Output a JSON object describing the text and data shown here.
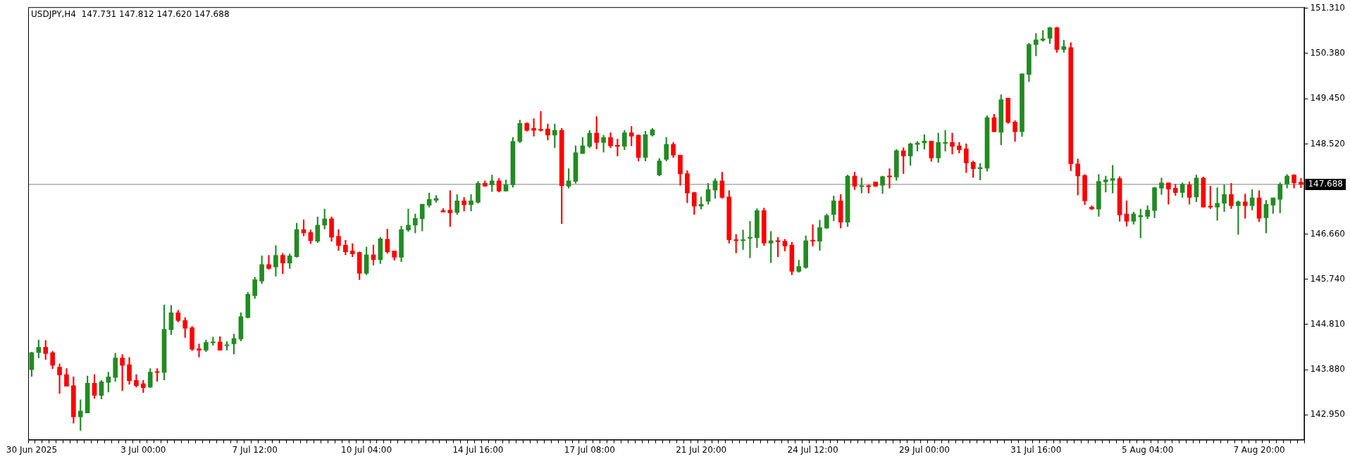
{
  "chart_data": {
    "type": "candlestick",
    "title": "USDJPY,H4  147.731 147.812 147.620 147.688",
    "categories": [
      "30 Jun 2025",
      null,
      null,
      null,
      null,
      null,
      null,
      null,
      null,
      null,
      null,
      null,
      null,
      null,
      null,
      null,
      "3 Jul 00:00",
      null,
      null,
      null,
      null,
      null,
      null,
      null,
      null,
      null,
      null,
      null,
      null,
      null,
      null,
      null,
      "7 Jul 12:00",
      null,
      null,
      null,
      null,
      null,
      null,
      null,
      null,
      null,
      null,
      null,
      null,
      null,
      null,
      null,
      "10 Jul 04:00",
      null,
      null,
      null,
      null,
      null,
      null,
      null,
      null,
      null,
      null,
      null,
      null,
      null,
      null,
      null,
      "14 Jul 16:00",
      null,
      null,
      null,
      null,
      null,
      null,
      null,
      null,
      null,
      null,
      null,
      null,
      null,
      null,
      null,
      "17 Jul 08:00",
      null,
      null,
      null,
      null,
      null,
      null,
      null,
      null,
      null,
      null,
      null,
      null,
      null,
      null,
      null,
      "21 Jul 20:00",
      null,
      null,
      null,
      null,
      null,
      null,
      null,
      null,
      null,
      null,
      null,
      null,
      null,
      null,
      null,
      "24 Jul 12:00",
      null,
      null,
      null,
      null,
      null,
      null,
      null,
      null,
      null,
      null,
      null,
      null,
      null,
      null,
      null,
      "29 Jul 00:00",
      null,
      null,
      null,
      null,
      null,
      null,
      null,
      null,
      null,
      null,
      null,
      null,
      null,
      null,
      null,
      "31 Jul 16:00",
      null,
      null,
      null,
      null,
      null,
      null,
      null,
      null,
      null,
      null,
      null,
      null,
      null,
      null,
      null,
      "5 Aug 04:00",
      null,
      null,
      null,
      null,
      null,
      null,
      null,
      null,
      null,
      null,
      null,
      null,
      null,
      null,
      null,
      "7 Aug 20:00",
      null,
      null,
      null,
      null,
      null,
      null
    ],
    "ohlc": [
      [
        143.88,
        144.24,
        143.74,
        144.23
      ],
      [
        144.23,
        144.49,
        144.12,
        144.34
      ],
      [
        144.34,
        144.48,
        144.09,
        144.21
      ],
      [
        144.23,
        144.26,
        143.9,
        143.97
      ],
      [
        143.93,
        144.0,
        143.39,
        143.77
      ],
      [
        143.78,
        143.9,
        143.54,
        143.54
      ],
      [
        143.55,
        143.73,
        142.78,
        142.91
      ],
      [
        142.91,
        143.26,
        142.63,
        143.03
      ],
      [
        142.99,
        143.75,
        142.99,
        143.6
      ],
      [
        143.6,
        143.78,
        143.29,
        143.35
      ],
      [
        143.35,
        143.66,
        143.28,
        143.63
      ],
      [
        143.62,
        143.83,
        143.42,
        143.73
      ],
      [
        143.72,
        144.22,
        143.64,
        144.12
      ],
      [
        144.12,
        144.19,
        143.45,
        143.97
      ],
      [
        143.98,
        144.13,
        143.58,
        143.65
      ],
      [
        143.66,
        143.78,
        143.52,
        143.55
      ],
      [
        143.59,
        143.66,
        143.41,
        143.51
      ],
      [
        143.52,
        143.9,
        143.51,
        143.83
      ],
      [
        143.83,
        143.9,
        143.64,
        143.82
      ],
      [
        143.82,
        145.21,
        143.67,
        144.71
      ],
      [
        144.7,
        145.2,
        144.6,
        145.05
      ],
      [
        145.05,
        145.1,
        144.86,
        144.89
      ],
      [
        144.89,
        144.95,
        144.54,
        144.73
      ],
      [
        144.74,
        144.77,
        144.27,
        144.3
      ],
      [
        144.31,
        144.41,
        144.14,
        144.28
      ],
      [
        144.28,
        144.49,
        144.25,
        144.44
      ],
      [
        144.43,
        144.55,
        144.38,
        144.45
      ],
      [
        144.45,
        144.56,
        144.28,
        144.28
      ],
      [
        144.37,
        144.46,
        144.28,
        144.39
      ],
      [
        144.41,
        144.61,
        144.2,
        144.52
      ],
      [
        144.51,
        145.05,
        144.47,
        144.97
      ],
      [
        144.95,
        145.47,
        144.94,
        145.43
      ],
      [
        145.4,
        145.78,
        145.34,
        145.73
      ],
      [
        145.7,
        146.22,
        145.65,
        146.04
      ],
      [
        146.04,
        146.23,
        145.94,
        145.96
      ],
      [
        145.99,
        146.43,
        145.8,
        146.23
      ],
      [
        146.23,
        146.27,
        145.85,
        146.07
      ],
      [
        146.07,
        146.26,
        145.96,
        146.22
      ],
      [
        146.2,
        146.89,
        146.19,
        146.76
      ],
      [
        146.76,
        146.96,
        146.63,
        146.69
      ],
      [
        146.7,
        146.75,
        146.47,
        146.53
      ],
      [
        146.52,
        147.02,
        146.49,
        146.85
      ],
      [
        146.85,
        147.18,
        146.77,
        146.98
      ],
      [
        146.98,
        147.02,
        146.52,
        146.6
      ],
      [
        146.62,
        146.76,
        146.33,
        146.43
      ],
      [
        146.44,
        146.54,
        146.24,
        146.3
      ],
      [
        146.32,
        146.47,
        146.2,
        146.26
      ],
      [
        146.29,
        146.3,
        145.73,
        145.86
      ],
      [
        145.86,
        146.4,
        145.83,
        146.24
      ],
      [
        146.24,
        146.44,
        146.03,
        146.14
      ],
      [
        146.14,
        146.6,
        146.06,
        146.57
      ],
      [
        146.56,
        146.77,
        146.27,
        146.3
      ],
      [
        146.32,
        146.32,
        146.13,
        146.19
      ],
      [
        146.19,
        146.83,
        146.1,
        146.76
      ],
      [
        146.75,
        147.18,
        146.72,
        146.85
      ],
      [
        146.85,
        147.08,
        146.69,
        146.99
      ],
      [
        146.98,
        147.28,
        146.73,
        147.28
      ],
      [
        147.26,
        147.51,
        147.22,
        147.38
      ],
      [
        147.36,
        147.46,
        147.32,
        147.4
      ],
      [
        147.15,
        147.19,
        147.12,
        147.12
      ],
      [
        147.16,
        147.56,
        146.82,
        147.1
      ],
      [
        147.11,
        147.48,
        147.07,
        147.35
      ],
      [
        147.35,
        147.42,
        147.14,
        147.27
      ],
      [
        147.27,
        147.48,
        147.14,
        147.35
      ],
      [
        147.32,
        147.75,
        147.3,
        147.71
      ],
      [
        147.71,
        147.76,
        147.65,
        147.65
      ],
      [
        147.68,
        147.88,
        147.54,
        147.76
      ],
      [
        147.76,
        147.81,
        147.53,
        147.55
      ],
      [
        147.55,
        147.78,
        147.55,
        147.68
      ],
      [
        147.68,
        148.65,
        147.63,
        148.57
      ],
      [
        148.57,
        149.01,
        148.54,
        148.94
      ],
      [
        148.94,
        148.96,
        148.78,
        148.8
      ],
      [
        148.84,
        149.04,
        148.68,
        148.8
      ],
      [
        148.81,
        149.19,
        148.78,
        148.8
      ],
      [
        148.83,
        148.93,
        148.6,
        148.7
      ],
      [
        148.7,
        148.93,
        148.44,
        148.8
      ],
      [
        148.8,
        148.84,
        146.88,
        147.66
      ],
      [
        147.65,
        148.01,
        147.61,
        147.76
      ],
      [
        147.75,
        148.48,
        147.71,
        148.34
      ],
      [
        148.32,
        148.65,
        148.32,
        148.48
      ],
      [
        148.47,
        148.8,
        148.44,
        148.74
      ],
      [
        148.74,
        149.08,
        148.42,
        148.55
      ],
      [
        148.55,
        148.7,
        148.35,
        148.65
      ],
      [
        148.65,
        148.75,
        148.44,
        148.48
      ],
      [
        148.48,
        148.62,
        148.27,
        148.47
      ],
      [
        148.47,
        148.8,
        148.4,
        148.75
      ],
      [
        148.75,
        148.88,
        148.48,
        148.68
      ],
      [
        148.7,
        148.71,
        148.17,
        148.24
      ],
      [
        148.24,
        148.78,
        148.17,
        148.71
      ],
      [
        148.7,
        148.84,
        148.68,
        148.81
      ],
      [
        147.88,
        148.22,
        147.86,
        148.17
      ],
      [
        148.2,
        148.65,
        148.17,
        148.51
      ],
      [
        148.51,
        148.55,
        148.24,
        148.29
      ],
      [
        148.29,
        148.29,
        147.67,
        147.9
      ],
      [
        147.91,
        147.97,
        147.31,
        147.51
      ],
      [
        147.52,
        147.53,
        147.07,
        147.24
      ],
      [
        147.24,
        147.43,
        147.18,
        147.28
      ],
      [
        147.34,
        147.71,
        147.28,
        147.58
      ],
      [
        147.57,
        147.81,
        147.4,
        147.76
      ],
      [
        147.76,
        147.94,
        147.4,
        147.42
      ],
      [
        147.43,
        147.56,
        146.48,
        146.55
      ],
      [
        146.55,
        146.66,
        146.28,
        146.53
      ],
      [
        146.53,
        146.75,
        146.35,
        146.54
      ],
      [
        146.58,
        146.93,
        146.18,
        146.59
      ],
      [
        146.59,
        147.19,
        146.39,
        147.15
      ],
      [
        147.15,
        147.2,
        146.43,
        146.48
      ],
      [
        146.48,
        146.72,
        146.08,
        146.53
      ],
      [
        146.53,
        146.6,
        146.2,
        146.51
      ],
      [
        146.52,
        146.56,
        146.32,
        146.42
      ],
      [
        146.44,
        146.5,
        145.83,
        145.9
      ],
      [
        145.9,
        146.13,
        145.88,
        146.0
      ],
      [
        145.98,
        146.63,
        145.96,
        146.53
      ],
      [
        146.54,
        146.86,
        146.42,
        146.52
      ],
      [
        146.52,
        146.95,
        146.33,
        146.8
      ],
      [
        146.79,
        147.08,
        146.78,
        147.05
      ],
      [
        147.07,
        147.45,
        146.94,
        147.35
      ],
      [
        147.35,
        147.48,
        146.79,
        146.91
      ],
      [
        146.91,
        147.88,
        146.82,
        147.86
      ],
      [
        147.86,
        147.94,
        147.58,
        147.65
      ],
      [
        147.64,
        147.82,
        147.51,
        147.66
      ],
      [
        147.66,
        147.68,
        147.51,
        147.64
      ],
      [
        147.74,
        147.74,
        147.64,
        147.65
      ],
      [
        147.67,
        147.86,
        147.5,
        147.85
      ],
      [
        147.85,
        148.01,
        147.61,
        147.84
      ],
      [
        147.84,
        148.41,
        147.77,
        148.38
      ],
      [
        148.38,
        148.44,
        147.91,
        148.27
      ],
      [
        148.27,
        148.54,
        148.08,
        148.52
      ],
      [
        148.51,
        148.57,
        148.37,
        148.54
      ],
      [
        148.54,
        148.71,
        148.41,
        148.58
      ],
      [
        148.58,
        148.58,
        148.16,
        148.23
      ],
      [
        148.23,
        148.74,
        148.14,
        148.55
      ],
      [
        148.53,
        148.8,
        148.37,
        148.55
      ],
      [
        148.55,
        148.74,
        148.31,
        148.47
      ],
      [
        148.48,
        148.55,
        148.33,
        148.4
      ],
      [
        148.42,
        148.52,
        147.93,
        148.13
      ],
      [
        148.14,
        148.17,
        147.83,
        148.01
      ],
      [
        148.01,
        148.12,
        147.78,
        148.02
      ],
      [
        148.02,
        149.1,
        147.96,
        149.06
      ],
      [
        149.06,
        149.13,
        148.77,
        148.77
      ],
      [
        148.76,
        149.53,
        148.5,
        149.43
      ],
      [
        149.46,
        149.46,
        148.94,
        148.96
      ],
      [
        148.97,
        149.0,
        148.57,
        148.77
      ],
      [
        148.77,
        149.96,
        148.67,
        149.96
      ],
      [
        149.95,
        150.59,
        149.8,
        150.56
      ],
      [
        150.56,
        150.79,
        150.33,
        150.66
      ],
      [
        150.65,
        150.85,
        150.63,
        150.68
      ],
      [
        150.69,
        150.92,
        150.58,
        150.91
      ],
      [
        150.91,
        150.92,
        150.4,
        150.46
      ],
      [
        150.46,
        150.65,
        150.4,
        150.52
      ],
      [
        150.5,
        150.6,
        147.97,
        148.11
      ],
      [
        148.11,
        148.21,
        147.47,
        147.86
      ],
      [
        147.87,
        147.89,
        147.27,
        147.35
      ],
      [
        147.22,
        147.25,
        147.17,
        147.18
      ],
      [
        147.18,
        147.89,
        147.03,
        147.75
      ],
      [
        147.74,
        147.86,
        147.53,
        147.78
      ],
      [
        147.77,
        148.08,
        147.51,
        147.81
      ],
      [
        147.81,
        147.85,
        146.93,
        147.06
      ],
      [
        147.08,
        147.35,
        146.83,
        146.93
      ],
      [
        146.93,
        147.12,
        146.87,
        147.08
      ],
      [
        147.02,
        147.18,
        146.59,
        147.05
      ],
      [
        147.03,
        147.25,
        146.98,
        147.16
      ],
      [
        147.15,
        147.63,
        147.0,
        147.62
      ],
      [
        147.61,
        147.82,
        147.48,
        147.72
      ],
      [
        147.72,
        147.72,
        147.28,
        147.59
      ],
      [
        147.61,
        147.69,
        147.46,
        147.52
      ],
      [
        147.52,
        147.72,
        147.42,
        147.69
      ],
      [
        147.68,
        147.74,
        147.28,
        147.42
      ],
      [
        147.43,
        147.88,
        147.33,
        147.82
      ],
      [
        147.82,
        147.84,
        147.22,
        147.22
      ],
      [
        147.23,
        147.65,
        147.19,
        147.22
      ],
      [
        147.22,
        147.62,
        146.95,
        147.3
      ],
      [
        147.3,
        147.68,
        147.13,
        147.48
      ],
      [
        147.48,
        147.71,
        147.19,
        147.25
      ],
      [
        147.25,
        147.35,
        146.66,
        147.33
      ],
      [
        147.33,
        147.49,
        146.99,
        147.25
      ],
      [
        147.25,
        147.58,
        147.16,
        147.41
      ],
      [
        147.41,
        147.56,
        146.92,
        146.99
      ],
      [
        147.0,
        147.36,
        146.69,
        147.28
      ],
      [
        147.26,
        147.41,
        147.09,
        147.41
      ],
      [
        147.38,
        147.72,
        147.1,
        147.69
      ],
      [
        147.69,
        147.89,
        147.61,
        147.86
      ],
      [
        147.88,
        147.89,
        147.61,
        147.72
      ],
      [
        147.731,
        147.812,
        147.62,
        147.688
      ]
    ],
    "colors": [
      "#228b22",
      "#228b22",
      "#ff0000",
      "#ff0000",
      "#ff0000",
      "#ff0000",
      "#ff0000",
      "#228b22",
      "#228b22",
      "#ff0000",
      "#228b22",
      "#228b22",
      "#228b22",
      "#ff0000",
      "#ff0000",
      "#ff0000",
      "#ff0000",
      "#228b22",
      "#ff0000",
      "#228b22",
      "#228b22",
      "#ff0000",
      "#ff0000",
      "#ff0000",
      "#ff0000",
      "#228b22",
      "#228b22",
      "#ff0000",
      "#228b22",
      "#228b22",
      "#228b22",
      "#228b22",
      "#228b22",
      "#228b22",
      "#ff0000",
      "#228b22",
      "#ff0000",
      "#228b22",
      "#228b22",
      "#ff0000",
      "#ff0000",
      "#228b22",
      "#228b22",
      "#ff0000",
      "#ff0000",
      "#ff0000",
      "#ff0000",
      "#ff0000",
      "#228b22",
      "#ff0000",
      "#228b22",
      "#ff0000",
      "#ff0000",
      "#228b22",
      "#228b22",
      "#228b22",
      "#228b22",
      "#228b22",
      "#228b22",
      "#ff0000",
      "#ff0000",
      "#228b22",
      "#ff0000",
      "#228b22",
      "#228b22",
      "#ff0000",
      "#228b22",
      "#ff0000",
      "#228b22",
      "#228b22",
      "#228b22",
      "#ff0000",
      "#ff0000",
      "#ff0000",
      "#ff0000",
      "#228b22",
      "#ff0000",
      "#228b22",
      "#228b22",
      "#228b22",
      "#228b22",
      "#ff0000",
      "#228b22",
      "#ff0000",
      "#ff0000",
      "#228b22",
      "#ff0000",
      "#ff0000",
      "#228b22",
      "#228b22",
      "#228b22",
      "#228b22",
      "#ff0000",
      "#ff0000",
      "#ff0000",
      "#ff0000",
      "#228b22",
      "#228b22",
      "#228b22",
      "#ff0000",
      "#ff0000",
      "#ff0000",
      "#228b22",
      "#228b22",
      "#228b22",
      "#ff0000",
      "#228b22",
      "#ff0000",
      "#ff0000",
      "#ff0000",
      "#228b22",
      "#228b22",
      "#ff0000",
      "#228b22",
      "#228b22",
      "#228b22",
      "#ff0000",
      "#228b22",
      "#ff0000",
      "#228b22",
      "#ff0000",
      "#ff0000",
      "#228b22",
      "#ff0000",
      "#228b22",
      "#ff0000",
      "#228b22",
      "#228b22",
      "#228b22",
      "#ff0000",
      "#228b22",
      "#228b22",
      "#ff0000",
      "#ff0000",
      "#ff0000",
      "#ff0000",
      "#228b22",
      "#228b22",
      "#ff0000",
      "#228b22",
      "#ff0000",
      "#ff0000",
      "#228b22",
      "#228b22",
      "#228b22",
      "#228b22",
      "#228b22",
      "#ff0000",
      "#228b22",
      "#ff0000",
      "#ff0000",
      "#ff0000",
      "#ff0000",
      "#228b22",
      "#228b22",
      "#228b22",
      "#ff0000",
      "#ff0000",
      "#228b22",
      "#228b22",
      "#228b22",
      "#228b22",
      "#228b22",
      "#ff0000",
      "#ff0000",
      "#228b22",
      "#ff0000",
      "#228b22",
      "#ff0000",
      "#ff0000",
      "#228b22",
      "#228b22",
      "#ff0000",
      "#228b22",
      "#ff0000",
      "#228b22",
      "#ff0000",
      "#228b22",
      "#228b22",
      "#228b22",
      "#228b22",
      "#ff0000",
      "#ff0000"
    ],
    "ylim": [
      142.44,
      151.33
    ],
    "yticks": [
      {
        "value": 142.95,
        "label": "142.950"
      },
      {
        "value": 143.88,
        "label": "143.880"
      },
      {
        "value": 144.81,
        "label": "144.810"
      },
      {
        "value": 145.74,
        "label": "145.740"
      },
      {
        "value": 146.66,
        "label": "146.660"
      },
      {
        "value": 148.52,
        "label": "148.520"
      },
      {
        "value": 149.45,
        "label": "149.450"
      },
      {
        "value": 150.38,
        "label": "150.380"
      },
      {
        "value": 151.31,
        "label": "151.310"
      }
    ],
    "ref_lines": [
      {
        "axis": "y",
        "value": 147.688,
        "label": "147.688",
        "color": "#808080"
      }
    ],
    "grid": false,
    "legend": false
  }
}
